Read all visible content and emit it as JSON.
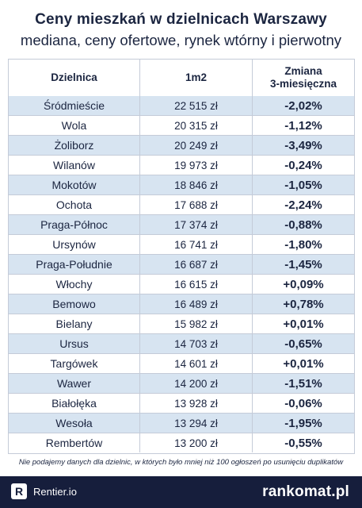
{
  "header": {
    "title": "Ceny mieszkań w dzielnicach Warszawy",
    "subtitle": "mediana, ceny ofertowe, rynek wtórny i pierwotny"
  },
  "chart_data": {
    "type": "table",
    "columns": [
      "Dzielnica",
      "1m2",
      "Zmiana\n3-miesięczna"
    ],
    "rows": [
      {
        "district": "Śródmieście",
        "price": "22 515 zł",
        "change": "-2,02%"
      },
      {
        "district": "Wola",
        "price": "20 315 zł",
        "change": "-1,12%"
      },
      {
        "district": "Żoliborz",
        "price": "20 249 zł",
        "change": "-3,49%"
      },
      {
        "district": "Wilanów",
        "price": "19 973 zł",
        "change": "-0,24%"
      },
      {
        "district": "Mokotów",
        "price": "18 846 zł",
        "change": "-1,05%"
      },
      {
        "district": "Ochota",
        "price": "17 688 zł",
        "change": "-2,24%"
      },
      {
        "district": "Praga-Północ",
        "price": "17 374 zł",
        "change": "-0,88%"
      },
      {
        "district": "Ursynów",
        "price": "16 741 zł",
        "change": "-1,80%"
      },
      {
        "district": "Praga-Południe",
        "price": "16 687 zł",
        "change": "-1,45%"
      },
      {
        "district": "Włochy",
        "price": "16 615 zł",
        "change": "+0,09%"
      },
      {
        "district": "Bemowo",
        "price": "16 489 zł",
        "change": "+0,78%"
      },
      {
        "district": "Bielany",
        "price": "15 982 zł",
        "change": "+0,01%"
      },
      {
        "district": "Ursus",
        "price": "14 703 zł",
        "change": "-0,65%"
      },
      {
        "district": "Targówek",
        "price": "14 601 zł",
        "change": "+0,01%"
      },
      {
        "district": "Wawer",
        "price": "14 200 zł",
        "change": "-1,51%"
      },
      {
        "district": "Białołęka",
        "price": "13 928 zł",
        "change": "-0,06%"
      },
      {
        "district": "Wesoła",
        "price": "13 294 zł",
        "change": "-1,95%"
      },
      {
        "district": "Rembertów",
        "price": "13 200 zł",
        "change": "-0,55%"
      }
    ],
    "row_colors": [
      "#d7e4f1",
      "#ffffff"
    ]
  },
  "note": "Nie podajemy danych dla dzielnic, w których było mniej niż 100 ogłoszeń po usunięciu duplikatów",
  "footer": {
    "left_logo_letter": "R",
    "left_brand": "Rentier.io",
    "right_brand": "rankomat.pl"
  },
  "colors": {
    "navy": "#161e3c",
    "text": "#1b2540",
    "stripe": "#d7e4f1"
  }
}
